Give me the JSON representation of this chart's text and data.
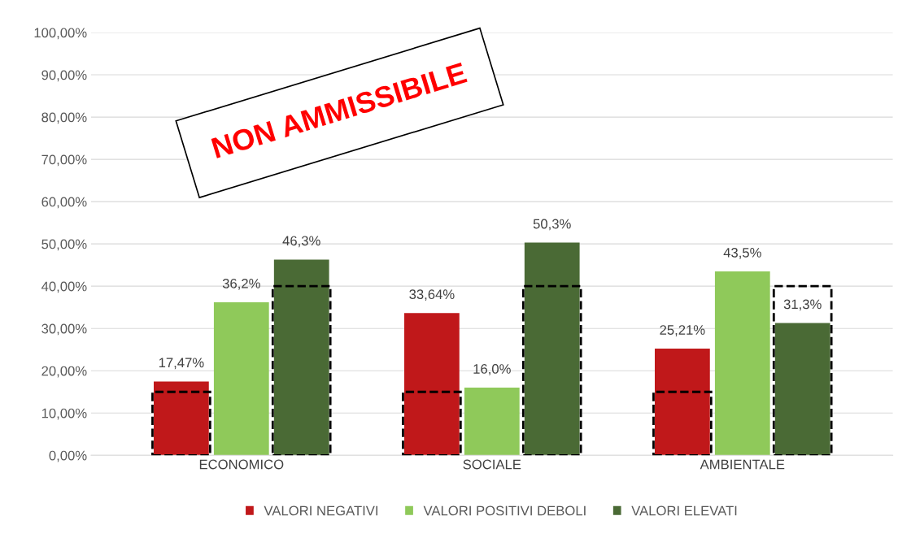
{
  "chart_data": {
    "type": "bar",
    "categories": [
      "ECONOMICO",
      "SOCIALE",
      "AMBIENTALE"
    ],
    "series": [
      {
        "name": "VALORI NEGATIVI",
        "color": "#c0181a",
        "values": [
          17.47,
          33.64,
          25.21
        ],
        "value_labels": [
          "17,47%",
          "33,64%",
          "25,21%"
        ]
      },
      {
        "color": "#000000",
        "line_style": "dashed",
        "values": [
          15,
          15,
          15
        ]
      },
      {
        "name": "VALORI POSITIVI DEBOLI",
        "color": "#8fc95a",
        "values": [
          36.2,
          16.0,
          43.5
        ],
        "value_labels": [
          "36,2%",
          "16,0%",
          "43,5%"
        ]
      },
      {
        "name": "VALORI ELEVATI",
        "color": "#4a6a35",
        "values": [
          46.3,
          50.3,
          31.3
        ],
        "value_labels": [
          "46,3%",
          "50,3%",
          "31,3%"
        ]
      },
      {
        "color": "#000000",
        "line_style": "dashed",
        "values": [
          40,
          40,
          40
        ]
      }
    ],
    "ylim": [
      0,
      100
    ],
    "yticks": [
      {
        "value": 0,
        "label": "0,00%"
      },
      {
        "value": 10,
        "label": "10,00%"
      },
      {
        "value": 20,
        "label": "20,00%"
      },
      {
        "value": 30,
        "label": "30,00%"
      },
      {
        "value": 40,
        "label": "40,00%"
      },
      {
        "value": 50,
        "label": "50,00%"
      },
      {
        "value": 60,
        "label": "60,00%"
      },
      {
        "value": 70,
        "label": "70,00%"
      },
      {
        "value": 80,
        "label": "80,00%"
      },
      {
        "value": 90,
        "label": "90,00%"
      },
      {
        "value": 100,
        "label": "100,00%"
      }
    ],
    "grid": "y",
    "legend": "bottom",
    "annotations": [
      "NON AMMISSIBILE"
    ]
  }
}
